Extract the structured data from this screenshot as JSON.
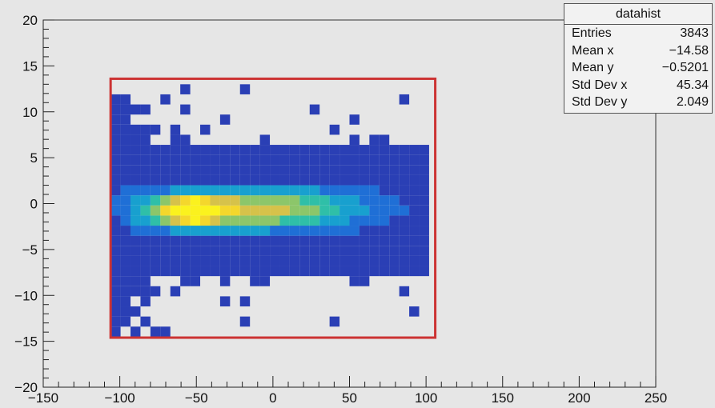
{
  "chart_data": {
    "type": "heatmap",
    "title": "",
    "xlabel": "",
    "ylabel": "",
    "xlim": [
      -150,
      250
    ],
    "ylim": [
      -20,
      20
    ],
    "x_ticks": [
      -150,
      -100,
      -50,
      0,
      50,
      100,
      150,
      200,
      250
    ],
    "y_ticks": [
      -20,
      -15,
      -10,
      -5,
      0,
      5,
      10,
      15,
      20
    ],
    "x_tick_labels": [
      "−150",
      "−100",
      "−50",
      "0",
      "50",
      "100",
      "150",
      "200",
      "250"
    ],
    "y_tick_labels": [
      "−20",
      "−15",
      "−10",
      "−5",
      "0",
      "5",
      "10",
      "15",
      "20"
    ],
    "grid": false,
    "bin_size": {
      "x": 6.5,
      "y": 1.1
    },
    "colormap": [
      "#2a3fb5",
      "#1f6fd6",
      "#18a0cf",
      "#2fbfa8",
      "#8cc66a",
      "#d6c24a",
      "#f4d72c",
      "#fbf21e"
    ],
    "cores": [
      {
        "x": -55,
        "y": -0.8,
        "sx": 14,
        "sy": 1.1,
        "w": 1.0
      },
      {
        "x": -20,
        "y": -0.6,
        "sx": 32,
        "sy": 1.4,
        "w": 0.55
      },
      {
        "x": 30,
        "y": -0.5,
        "sx": 35,
        "sy": 1.6,
        "w": 0.22
      },
      {
        "x": -90,
        "y": -0.5,
        "sx": 10,
        "sy": 2.0,
        "w": 0.12
      }
    ],
    "selection_box": {
      "x": [
        -106,
        106
      ],
      "y": [
        -14.6,
        13.6
      ],
      "color": "#cc3333"
    },
    "stats_box": {
      "title": "datahist",
      "rows": [
        {
          "label": "Entries",
          "value": "3843"
        },
        {
          "label": "Mean x",
          "value": "−14.58"
        },
        {
          "label": "Mean y",
          "value": "−0.5201"
        },
        {
          "label": "Std Dev x",
          "value": "45.34"
        },
        {
          "label": "Std Dev y",
          "value": "2.049"
        }
      ]
    }
  }
}
